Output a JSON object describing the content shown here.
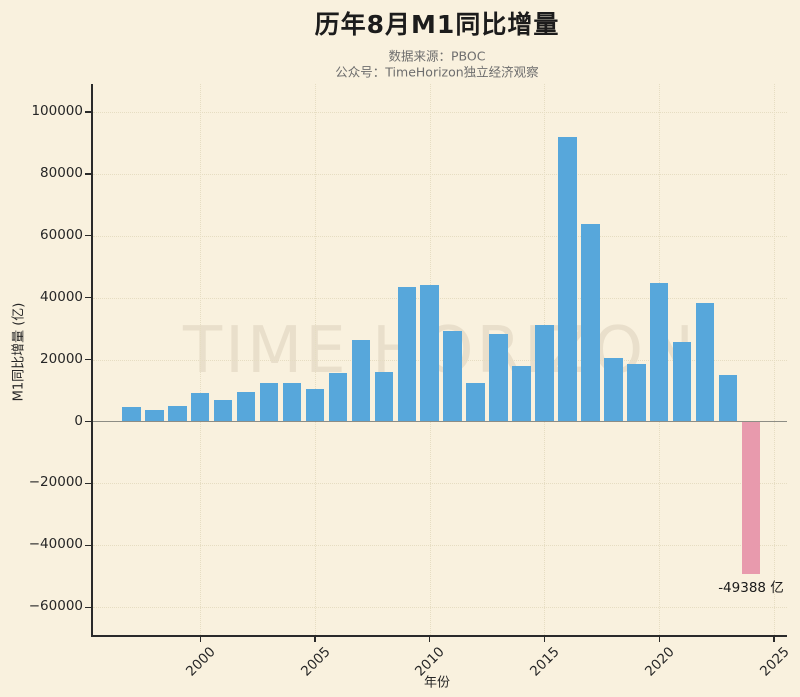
{
  "header": {
    "title": "历年8月M1同比增量",
    "subtitle_line1": "数据来源：PBOC",
    "subtitle_line2": "公众号：TimeHorizon独立经济观察"
  },
  "watermark": "TIME HORIZON",
  "chart_data": {
    "type": "bar",
    "title": "历年8月M1同比增量",
    "xlabel": "年份",
    "ylabel": "M1同比增量 (亿)",
    "x": [
      1997,
      1998,
      1999,
      2000,
      2001,
      2002,
      2003,
      2004,
      2005,
      2006,
      2007,
      2008,
      2009,
      2010,
      2011,
      2012,
      2013,
      2014,
      2015,
      2016,
      2017,
      2018,
      2019,
      2020,
      2021,
      2022,
      2023,
      2024
    ],
    "values": [
      4700,
      3600,
      5100,
      9300,
      7100,
      9600,
      12300,
      12500,
      10500,
      15600,
      26200,
      16000,
      43500,
      44000,
      29200,
      12500,
      28400,
      17900,
      31100,
      91800,
      63700,
      20600,
      18500,
      44800,
      25800,
      38200,
      15000,
      -49388
    ],
    "xticks": [
      {
        "value": 2000,
        "label": "2000"
      },
      {
        "value": 2005,
        "label": "2005"
      },
      {
        "value": 2010,
        "label": "2010"
      },
      {
        "value": 2015,
        "label": "2015"
      },
      {
        "value": 2020,
        "label": "2020"
      },
      {
        "value": 2025,
        "label": "2025"
      }
    ],
    "yticks": [
      {
        "value": 100000,
        "label": "100000"
      },
      {
        "value": 80000,
        "label": "80000"
      },
      {
        "value": 60000,
        "label": "60000"
      },
      {
        "value": 40000,
        "label": "40000"
      },
      {
        "value": 20000,
        "label": "20000"
      },
      {
        "value": 0,
        "label": "0"
      },
      {
        "value": -20000,
        "label": "−20000"
      },
      {
        "value": -40000,
        "label": "−40000"
      },
      {
        "value": -60000,
        "label": "−60000"
      }
    ],
    "ylim": [
      -69000,
      109000
    ],
    "xlim": [
      1995.3,
      2025.6
    ],
    "grid": true,
    "legend_position": "none",
    "annotation": {
      "text": "-49388 亿",
      "year": 2024,
      "value": -49388
    },
    "colors": {
      "bar_positive": "#57a7db",
      "bar_negative": "#e89aad",
      "background": "#f9f1de",
      "grid": "#e6ddc2",
      "zero_line": "#8d8d85",
      "axis": "#2a2a2a",
      "text": "#262626",
      "subtitle": "#6e6e6e"
    }
  }
}
